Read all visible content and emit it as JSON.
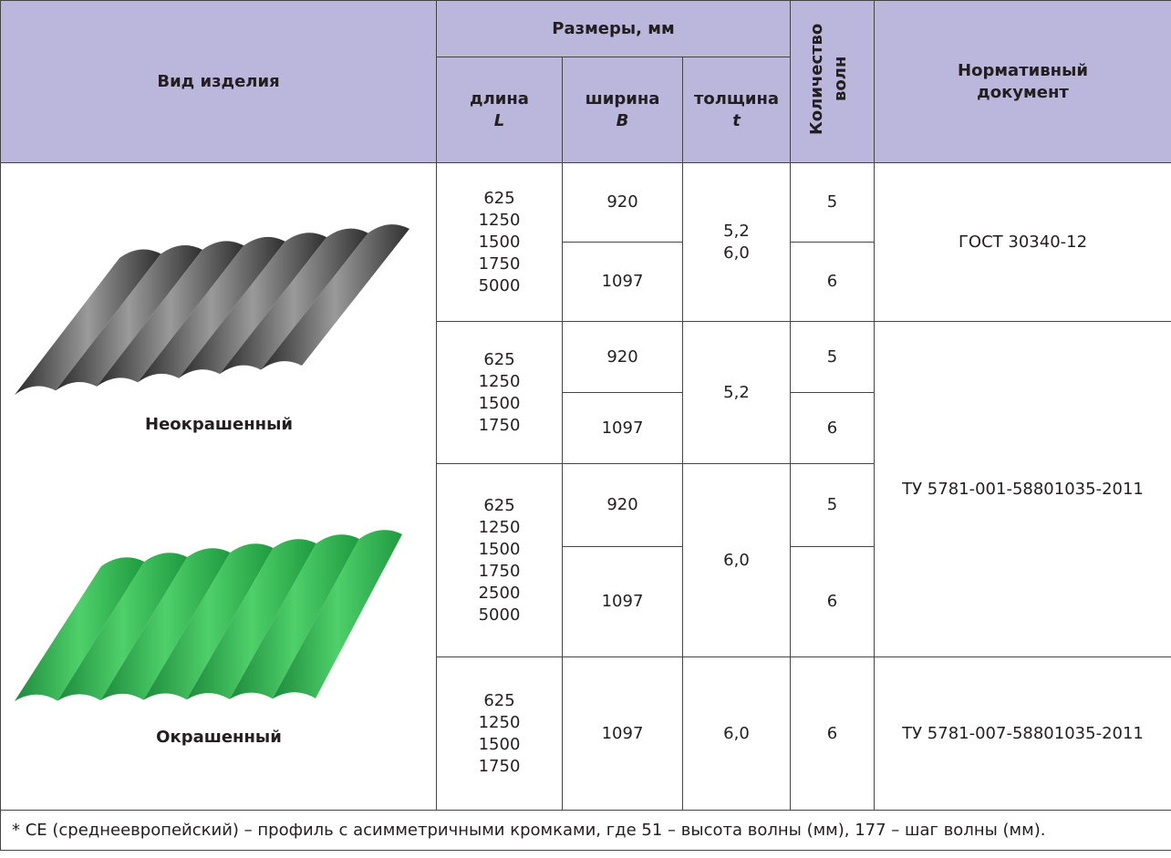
{
  "header": {
    "product": "Вид изделия",
    "sizes": "Размеры, мм",
    "length": "длина",
    "length_sym": "L",
    "width": "ширина",
    "width_sym": "B",
    "thickness": "толщина",
    "thickness_sym": "t",
    "waves": "Количество волн",
    "doc": "Нормативный документ"
  },
  "labels": {
    "unpainted": "Неокрашенный",
    "painted": "Окрашенный"
  },
  "groups": [
    {
      "lengths": [
        625,
        1250,
        1500,
        1750,
        5000
      ],
      "rows": [
        {
          "width": 920,
          "waves": 5
        },
        {
          "width": 1097,
          "waves": 6
        }
      ],
      "thickness": [
        "5,2",
        "6,0"
      ],
      "doc": "ГОСТ 30340-12"
    },
    {
      "lengths": [
        625,
        1250,
        1500,
        1750
      ],
      "rows": [
        {
          "width": 920,
          "waves": 5
        },
        {
          "width": 1097,
          "waves": 6
        }
      ],
      "thickness": [
        "5,2"
      ]
    },
    {
      "lengths": [
        625,
        1250,
        1500,
        1750,
        2500,
        5000
      ],
      "rows": [
        {
          "width": 920,
          "waves": 5
        },
        {
          "width": 1097,
          "waves": 6
        }
      ],
      "thickness": [
        "6,0"
      ]
    },
    {
      "lengths": [
        625,
        1250,
        1500,
        1750
      ],
      "rows": [
        {
          "width": 1097,
          "waves": 6
        }
      ],
      "thickness": [
        "6,0"
      ],
      "doc": "ТУ 5781-007-58801035-2011"
    }
  ],
  "shared_doc": "ТУ 5781-001-58801035-2011",
  "footnote": "* СЕ (среднеевропейский) – профиль с асимметричными кромками, где 51 – высота волны (мм), 177 – шаг волны (мм)."
}
